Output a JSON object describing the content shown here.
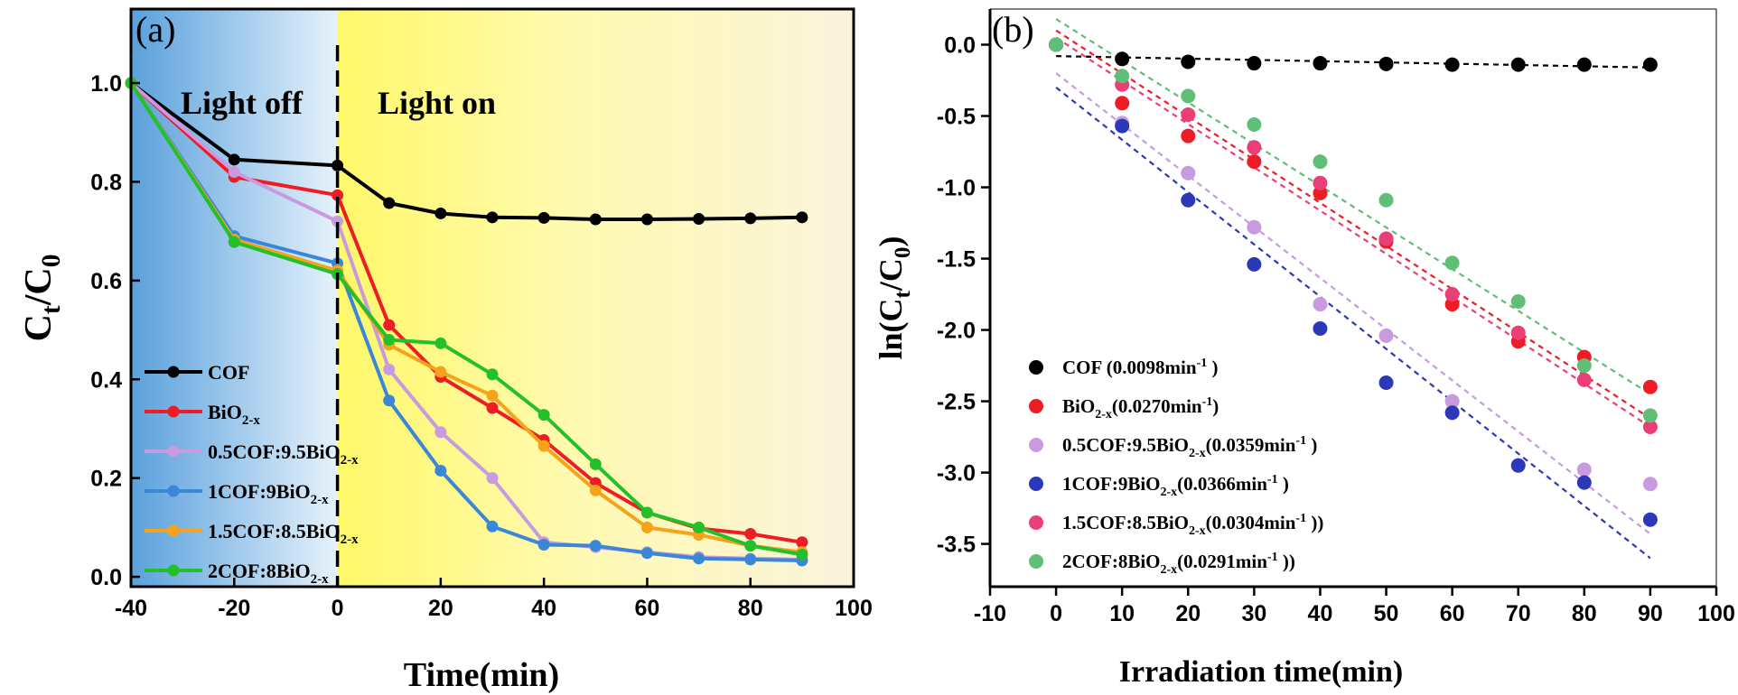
{
  "chart_data": [
    {
      "type": "line",
      "panel_label": "(a)",
      "xlabel": "Time(min)",
      "ylabel": {
        "main": "C",
        "sub1": "t",
        "mid": "/C",
        "sub2": "0"
      },
      "xlim": [
        -40,
        100
      ],
      "ylim": [
        -0.02,
        1.15
      ],
      "xticks": [
        "-40",
        "-20",
        "0",
        "20",
        "40",
        "60",
        "80",
        "100"
      ],
      "yticks": [
        "0.0",
        "0.2",
        "0.4",
        "0.6",
        "0.8",
        "1.0"
      ],
      "annotations": {
        "dark": "Light off",
        "light": "Light on"
      },
      "x": [
        -40,
        -20,
        0,
        10,
        20,
        30,
        40,
        50,
        60,
        70,
        80,
        90
      ],
      "series": [
        {
          "name": "COF",
          "base": "COF",
          "sub": "",
          "color": "#000000",
          "values": [
            1.0,
            0.845,
            0.833,
            0.757,
            0.736,
            0.728,
            0.727,
            0.724,
            0.724,
            0.725,
            0.726,
            0.728
          ]
        },
        {
          "name": "BiO2-x",
          "base": "BiO",
          "sub": "2-x",
          "color": "#ee1c24",
          "values": [
            1.0,
            0.81,
            0.773,
            0.51,
            0.405,
            0.342,
            0.277,
            0.19,
            0.13,
            0.098,
            0.087,
            0.07
          ]
        },
        {
          "name": "0.5COF:9.5BiO2-x",
          "base": "0.5COF:9.5BiO",
          "sub": "2-x",
          "color": "#c89ae0",
          "values": [
            1.0,
            0.82,
            0.72,
            0.42,
            0.293,
            0.2,
            0.07,
            0.06,
            0.05,
            0.04,
            0.037,
            0.035
          ]
        },
        {
          "name": "1COF:9BiO2-x",
          "base": "1COF:9BiO",
          "sub": "2-x",
          "color": "#3a87d8",
          "values": [
            1.0,
            0.69,
            0.635,
            0.357,
            0.215,
            0.102,
            0.065,
            0.063,
            0.048,
            0.037,
            0.035,
            0.033
          ]
        },
        {
          "name": "1.5COF:8.5BiO2-x",
          "base": "1.5COF:8.5BiO",
          "sub": "2-x",
          "color": "#f7a21b",
          "values": [
            1.0,
            0.683,
            0.62,
            0.47,
            0.415,
            0.367,
            0.265,
            0.175,
            0.1,
            0.085,
            0.063,
            0.05
          ]
        },
        {
          "name": "2COF:8BiO2-x",
          "base": "2COF:8BiO",
          "sub": "2-x",
          "color": "#22c02b",
          "values": [
            1.0,
            0.678,
            0.613,
            0.48,
            0.473,
            0.41,
            0.328,
            0.228,
            0.13,
            0.1,
            0.063,
            0.045
          ]
        }
      ]
    },
    {
      "type": "scatter",
      "panel_label": "(b)",
      "xlabel": "Irradiation time(min)",
      "ylabel": {
        "main": "ln(C",
        "sub1": "t",
        "mid": "/C",
        "sub2": "0",
        "end": ")"
      },
      "xlim": [
        -10,
        100
      ],
      "ylim": [
        -3.8,
        0.25
      ],
      "xticks": [
        "-10",
        "0",
        "10",
        "20",
        "30",
        "40",
        "50",
        "60",
        "70",
        "80",
        "90",
        "100"
      ],
      "yticks": [
        "0.0",
        "-0.5",
        "-1.0",
        "-1.5",
        "-2.0",
        "-2.5",
        "-3.0",
        "-3.5"
      ],
      "x": [
        0,
        10,
        20,
        30,
        40,
        50,
        60,
        70,
        80,
        90
      ],
      "series": [
        {
          "name": "COF (0.0098min-1 )",
          "base": "COF  (0.0098min",
          "sup": "-1",
          "tail": " )",
          "color": "#000000",
          "values": [
            0.0,
            -0.1,
            -0.12,
            -0.13,
            -0.13,
            -0.135,
            -0.14,
            -0.14,
            -0.14,
            -0.14
          ],
          "fit": [
            [
              0,
              -0.08
            ],
            [
              90,
              -0.16
            ]
          ]
        },
        {
          "name": "BiO2-x(0.0270min-1)",
          "base": "BiO",
          "sub": "2-x",
          "base2": "(0.0270min",
          "sup": "-1",
          "tail": ")",
          "color": "#ee1c24",
          "values": [
            0.0,
            -0.41,
            -0.64,
            -0.82,
            -1.04,
            -1.38,
            -1.82,
            -2.08,
            -2.19,
            -2.4
          ],
          "fit": [
            [
              0,
              0.1
            ],
            [
              90,
              -2.62
            ]
          ]
        },
        {
          "name": "0.5COF:9.5BiO2-x(0.0359min-1 )",
          "base": "0.5COF:9.5BiO",
          "sub": "2-x",
          "base2": "(0.0359min",
          "sup": "-1",
          "tail": " )",
          "color": "#c89ae0",
          "values": [
            0.0,
            -0.55,
            -0.9,
            -1.28,
            -1.82,
            -2.04,
            -2.5,
            -2.95,
            -2.98,
            -3.08
          ],
          "fit": [
            [
              0,
              -0.2
            ],
            [
              90,
              -3.43
            ]
          ]
        },
        {
          "name": "1COF:9BiO2-x(0.0366min-1 )",
          "base": "1COF:9BiO",
          "sub": "2-x",
          "base2": "(0.0366min",
          "sup": "-1",
          "tail": " )",
          "color": "#2b38b8",
          "values": [
            0.0,
            -0.57,
            -1.09,
            -1.54,
            -1.99,
            -2.37,
            -2.58,
            -2.95,
            -3.07,
            -3.33
          ],
          "fit": [
            [
              0,
              -0.3
            ],
            [
              90,
              -3.6
            ]
          ]
        },
        {
          "name": "1.5COF:8.5BiO2-x(0.0304min-1 ))",
          "base": "1.5COF:8.5BiO",
          "sub": "2-x",
          "base2": "(0.0304min",
          "sup": "-1",
          "tail": " ))",
          "color": "#ea3f76",
          "values": [
            0.0,
            -0.28,
            -0.49,
            -0.72,
            -0.97,
            -1.36,
            -1.75,
            -2.02,
            -2.35,
            -2.68
          ],
          "fit": [
            [
              0,
              0.05
            ],
            [
              90,
              -2.68
            ]
          ]
        },
        {
          "name": "2COF:8BiO2-x(0.0291min-1 ))",
          "base": "2COF:8BiO",
          "sub": "2-x",
          "base2": "(0.0291min",
          "sup": "-1",
          "tail": " ))",
          "color": "#5fbf76",
          "values": [
            0.0,
            -0.22,
            -0.36,
            -0.56,
            -0.82,
            -1.09,
            -1.53,
            -1.8,
            -2.25,
            -2.6
          ],
          "fit": [
            [
              0,
              0.18
            ],
            [
              90,
              -2.45
            ]
          ]
        }
      ]
    }
  ]
}
